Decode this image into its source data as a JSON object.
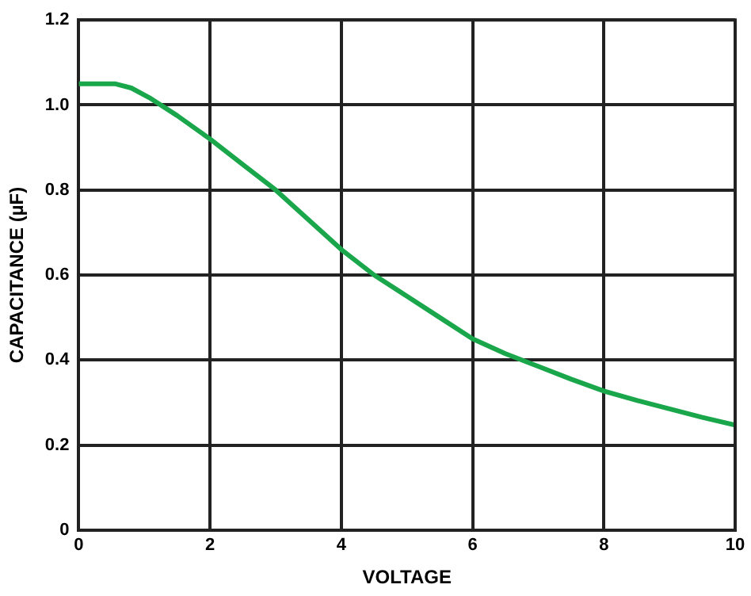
{
  "chart_data": {
    "type": "line",
    "xlabel": "VOLTAGE",
    "ylabel": "CAPACITANCE (µF)",
    "x": [
      0,
      0.3,
      0.55,
      0.8,
      1.1,
      1.5,
      2,
      2.5,
      3,
      3.5,
      4,
      4.5,
      5,
      5.5,
      6,
      6.5,
      7,
      7.5,
      8,
      8.5,
      9,
      9.5,
      10
    ],
    "series": [
      {
        "color": "#1aa64a",
        "values": [
          1.05,
          1.05,
          1.05,
          1.04,
          1.015,
          0.975,
          0.92,
          0.86,
          0.8,
          0.73,
          0.66,
          0.6,
          0.55,
          0.5,
          0.45,
          0.415,
          0.385,
          0.355,
          0.327,
          0.305,
          0.285,
          0.265,
          0.247
        ]
      }
    ],
    "xlim": [
      0,
      10
    ],
    "xticks": [
      0,
      2,
      4,
      6,
      8,
      10
    ],
    "ylim": [
      0,
      1.2
    ],
    "yticks": [
      0,
      0.2,
      0.4,
      0.6,
      0.8,
      {
        "value": 1,
        "label": "1.0"
      },
      1.2
    ],
    "grid": true,
    "legend": false,
    "marker": "none",
    "line_style": "solid"
  }
}
